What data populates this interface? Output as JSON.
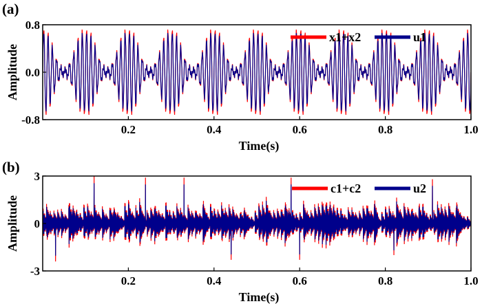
{
  "chart_data": [
    {
      "panel_label": "(a)",
      "type": "line",
      "xlabel": "Time(s)",
      "ylabel": "Amplitude",
      "xlim": [
        0.0,
        1.0
      ],
      "ylim": [
        -0.8,
        0.8
      ],
      "xticks": [
        0.2,
        0.4,
        0.6,
        0.8,
        1.0
      ],
      "xtick_labels": [
        "0.2",
        "0.4",
        "0.6",
        "0.8",
        "1.0"
      ],
      "yticks": [
        -0.8,
        0.0,
        0.8
      ],
      "ytick_labels": [
        "-0.8",
        "0.0",
        "0.8"
      ],
      "legend_position": "top-right",
      "signal": {
        "carrier_hz": 100,
        "envelope": {
          "base": 0.4,
          "depth": 0.35,
          "hz": 10
        },
        "sample_count": 1000,
        "u_scale": 0.92
      },
      "series": [
        {
          "name": "x1+x2",
          "color": "#ff0000"
        },
        {
          "name": "u1",
          "color": "#00008b"
        }
      ],
      "grid": false
    },
    {
      "panel_label": "(b)",
      "type": "line",
      "xlabel": "Time(s)",
      "ylabel": "Amplitude",
      "xlim": [
        0.0,
        1.0
      ],
      "ylim": [
        -3,
        3
      ],
      "xticks": [
        0.2,
        0.4,
        0.6,
        0.8,
        1.0
      ],
      "xtick_labels": [
        "0.2",
        "0.4",
        "0.6",
        "0.8",
        "1.0"
      ],
      "yticks": [
        -3,
        0,
        3
      ],
      "ytick_labels": [
        "-3",
        "0",
        "3"
      ],
      "legend_position": "top-right",
      "signal": {
        "impulse_hz": 115,
        "impulse_amplitude": 1.6,
        "ring_hz": 900,
        "decay": 120,
        "sample_count": 3000,
        "u_scale": 0.85
      },
      "peaks": [
        {
          "t": 0.12,
          "value": 3.0
        },
        {
          "t": 0.24,
          "value": 2.9
        },
        {
          "t": 0.33,
          "value": 2.9
        },
        {
          "t": 0.58,
          "value": 2.9
        },
        {
          "t": 0.82,
          "value": 2.6
        },
        {
          "t": 0.91,
          "value": 2.8
        },
        {
          "t": 0.03,
          "value": -2.4
        },
        {
          "t": 0.44,
          "value": -2.3
        },
        {
          "t": 0.6,
          "value": -2.3
        },
        {
          "t": 0.82,
          "value": -2.0
        }
      ],
      "series": [
        {
          "name": "c1+c2",
          "color": "#ff0000"
        },
        {
          "name": "u2",
          "color": "#00008b"
        }
      ],
      "grid": false
    }
  ]
}
